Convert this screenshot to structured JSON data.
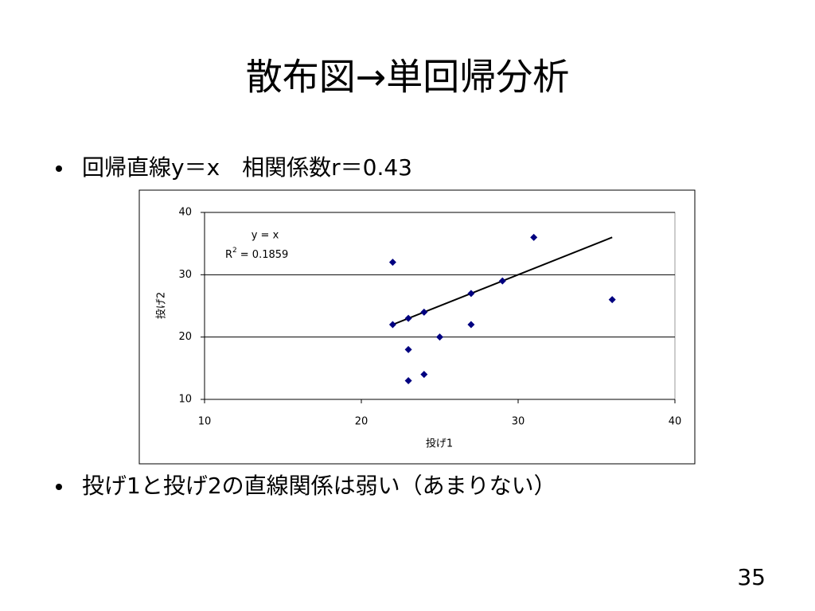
{
  "slide": {
    "title": "散布図→単回帰分析",
    "bullets": [
      "回帰直線y＝x　相関係数r＝0.43",
      "投げ1と投げ2の直線関係は弱い（あまりない）"
    ],
    "page_number": "35"
  },
  "chart_data": {
    "type": "scatter",
    "x_label": "投げ1",
    "y_label": "投げ2",
    "x": [
      22,
      22,
      23,
      23,
      23,
      24,
      24,
      25,
      27,
      27,
      29,
      31,
      36
    ],
    "values": [
      32,
      22,
      23,
      18,
      13,
      24,
      14,
      20,
      27,
      22,
      29,
      36,
      26
    ],
    "color": "#000080",
    "trendline": {
      "x": [
        22,
        36
      ],
      "y": [
        22,
        36
      ],
      "color": "#000000"
    },
    "equation": "y = x",
    "r2_base": "R",
    "r2_sup": "2",
    "r2_value": "= 0.1859",
    "xlim": [
      10,
      40
    ],
    "xticks": [
      10,
      20,
      30,
      40
    ],
    "ylim": [
      10,
      40
    ],
    "yticks": [
      10,
      20,
      30,
      40
    ],
    "grid": true
  }
}
